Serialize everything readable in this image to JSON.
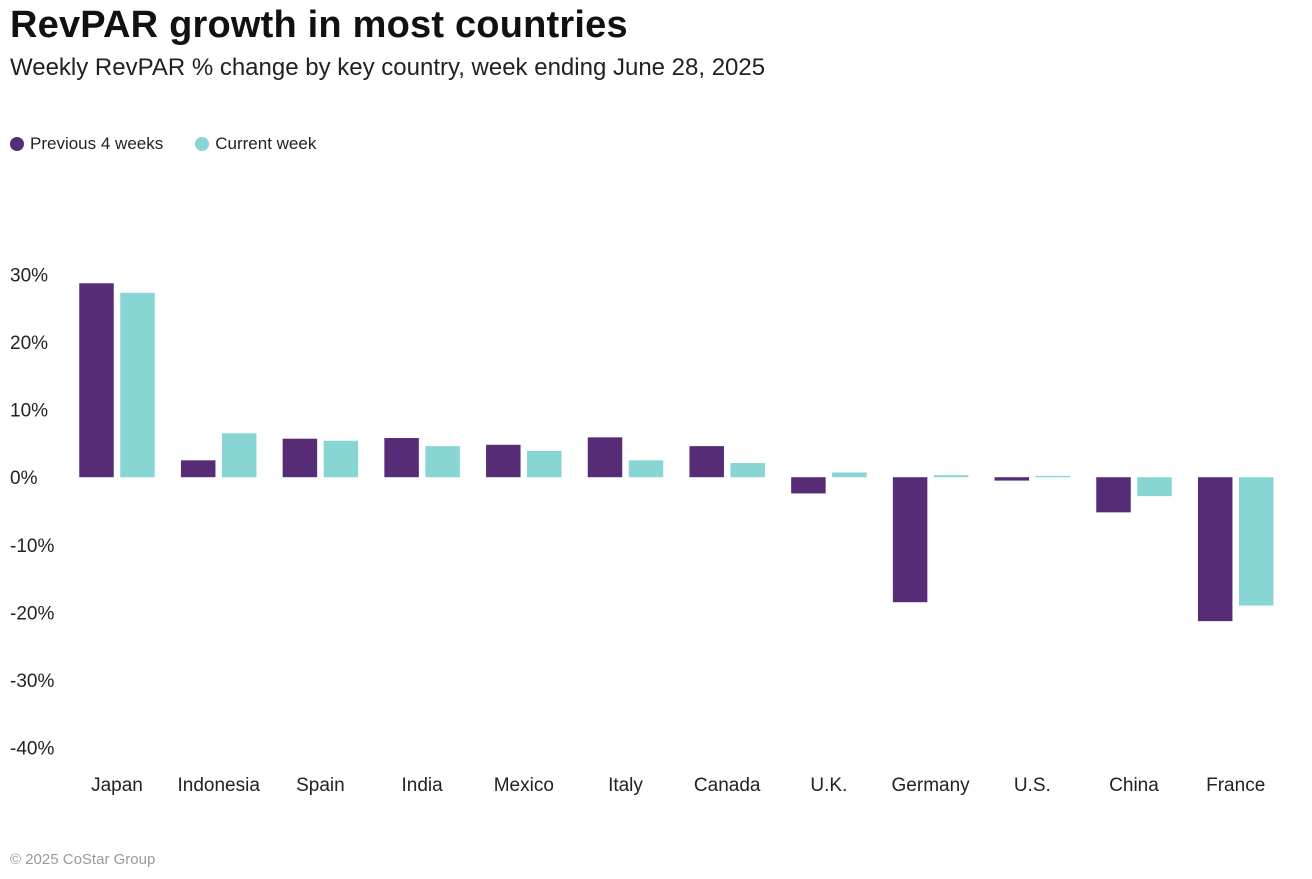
{
  "chart_data": {
    "type": "bar",
    "title": "RevPAR growth in most countries",
    "subtitle": "Weekly RevPAR % change by key country, week ending June 28, 2025",
    "categories": [
      "Japan",
      "Indonesia",
      "Spain",
      "India",
      "Mexico",
      "Italy",
      "Canada",
      "U.K.",
      "Germany",
      "U.S.",
      "China",
      "France"
    ],
    "series": [
      {
        "name": "Previous 4 weeks",
        "color": "#552c75",
        "values": [
          28.7,
          2.5,
          5.7,
          5.8,
          4.8,
          5.9,
          4.6,
          -2.4,
          -18.5,
          -0.5,
          -5.2,
          -21.3
        ]
      },
      {
        "name": "Current week",
        "color": "#87d6d3",
        "values": [
          27.3,
          6.5,
          5.4,
          4.6,
          3.9,
          2.5,
          2.1,
          0.7,
          0.3,
          0.2,
          -2.8,
          -19.0
        ]
      }
    ],
    "yticks": [
      "30%",
      "20%",
      "10%",
      "0%",
      "-10%",
      "-20%",
      "-30%",
      "-40%"
    ],
    "ytick_values": [
      30,
      20,
      10,
      0,
      -10,
      -20,
      -30,
      -40
    ],
    "ylim": [
      -40,
      30
    ],
    "grid": false,
    "legend": "top-left"
  },
  "footer": "© 2025 CoStar Group"
}
